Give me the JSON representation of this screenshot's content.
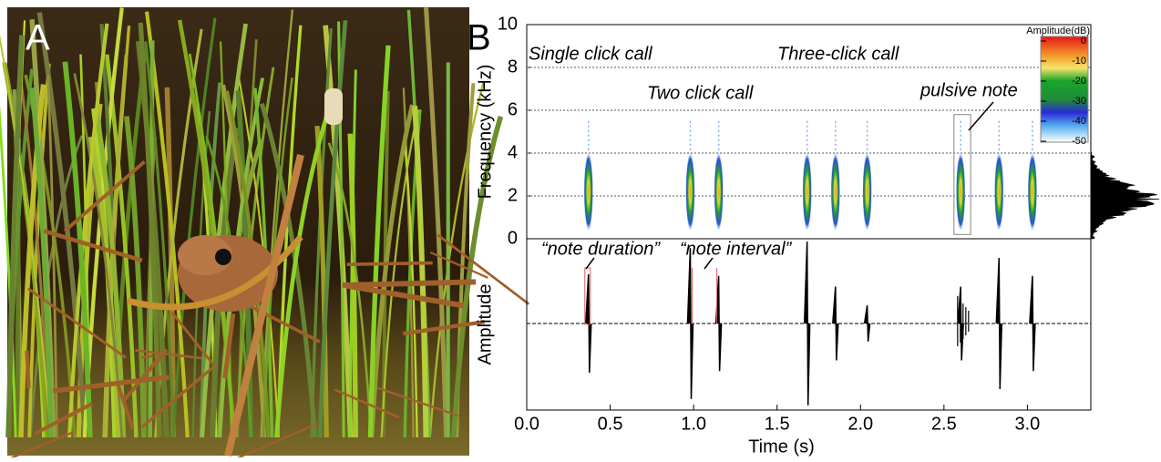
{
  "panel_a": {
    "label": "A"
  },
  "chart_data": {
    "type": "spectrogram",
    "label": "B",
    "xlabel": "Time (s)",
    "ylabel": "Frequency (kHz)",
    "ylabel2": "Amplitude",
    "xlim": [
      0,
      3.38
    ],
    "xticks": [
      {
        "value": 0,
        "label": "0.0"
      },
      {
        "value": 0.5,
        "label": "0.5"
      },
      {
        "value": 1,
        "label": "1.0"
      },
      {
        "value": 1.5,
        "label": "1.5"
      },
      {
        "value": 2,
        "label": "2.0"
      },
      {
        "value": 2.5,
        "label": "2.5"
      },
      {
        "value": 3,
        "label": "3.0"
      }
    ],
    "ylim": [
      0,
      10
    ],
    "yticks": [
      0,
      2,
      4,
      6,
      8,
      10
    ],
    "notes": {
      "time": [
        0.37,
        0.98,
        1.15,
        1.68,
        1.85,
        2.04,
        2.6,
        2.83,
        3.03
      ],
      "amplitude": [
        0.6,
        0.92,
        0.58,
        1,
        0.45,
        0.22,
        0.45,
        0.8,
        0.58
      ]
    },
    "pulsive_note_span": [
      2.56,
      2.66
    ],
    "annotations": [
      "Single click call",
      "Three-click call",
      "Two click call",
      "pulsive note",
      "“note duration”",
      "“note interval”"
    ],
    "colorbar": {
      "title": "Amplitude(dB)",
      "ticks": [
        0,
        -10,
        -20,
        -30,
        -40,
        -50
      ]
    }
  }
}
